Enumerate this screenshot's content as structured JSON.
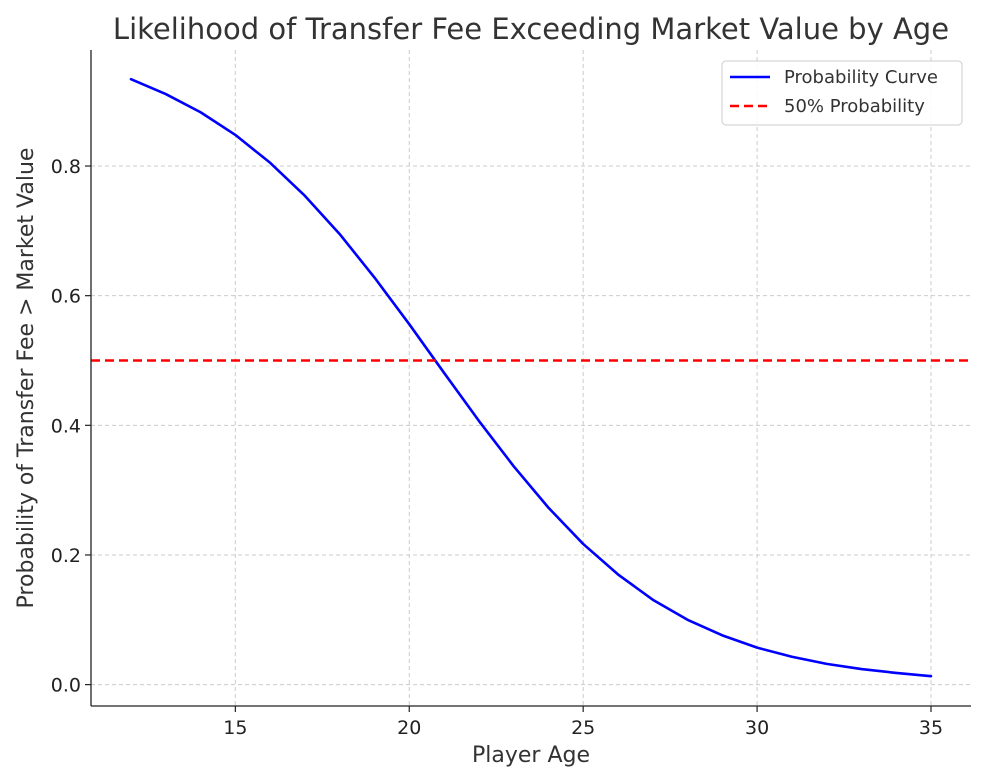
{
  "chart_data": {
    "type": "line",
    "title": "Likelihood of Transfer Fee Exceeding Market Value by Age",
    "xlabel": "Player Age",
    "ylabel": "Probability of Transfer Fee > Market Value",
    "xlim": [
      10.85,
      36.15
    ],
    "ylim": [
      -0.033,
      0.979
    ],
    "xticks": [
      15,
      20,
      25,
      30,
      35
    ],
    "xtick_labels": [
      "15",
      "20",
      "25",
      "30",
      "35"
    ],
    "yticks": [
      0.0,
      0.2,
      0.4,
      0.6,
      0.8
    ],
    "ytick_labels": [
      "0.0",
      "0.2",
      "0.4",
      "0.6",
      "0.8"
    ],
    "grid": true,
    "legend_position": "top-right",
    "series": [
      {
        "name": "Probability Curve",
        "color": "#0000ff",
        "style": "solid",
        "x": [
          12,
          13,
          14,
          15,
          16,
          17,
          18,
          19,
          20,
          21,
          22,
          23,
          24,
          25,
          26,
          27,
          28,
          29,
          30,
          31,
          32,
          33,
          34,
          35
        ],
        "y": [
          0.934,
          0.911,
          0.883,
          0.848,
          0.805,
          0.754,
          0.695,
          0.628,
          0.556,
          0.481,
          0.407,
          0.337,
          0.273,
          0.217,
          0.17,
          0.131,
          0.1,
          0.076,
          0.057,
          0.043,
          0.032,
          0.024,
          0.018,
          0.013
        ]
      },
      {
        "name": "50% Probability",
        "color": "#ff0000",
        "style": "dashed",
        "y_constant": 0.5
      }
    ]
  }
}
